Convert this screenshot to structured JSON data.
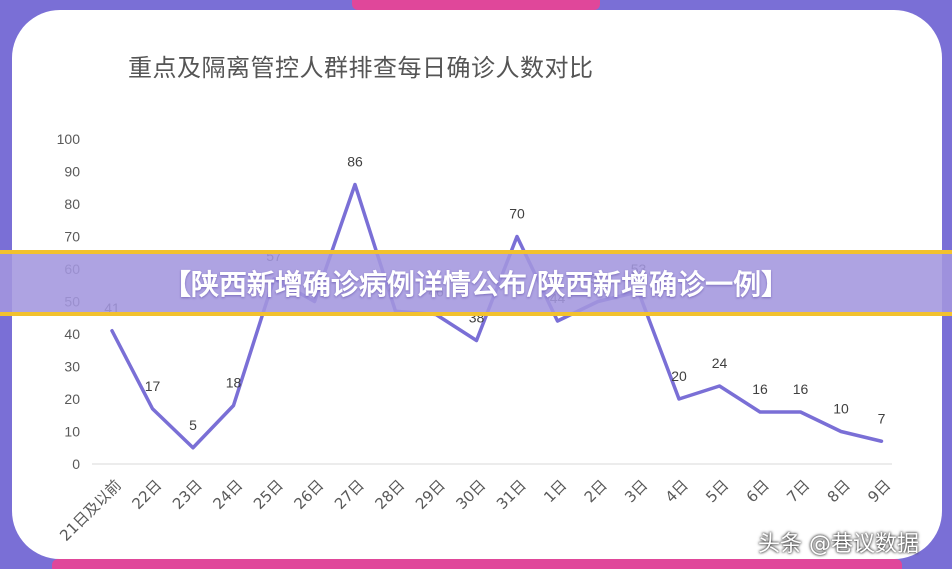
{
  "banner_text": "【陕西新增确诊病例详情公布/陕西新增确诊一例】",
  "watermark_text": "头条 @巷议数据",
  "colors": {
    "background": "#7a6fd6",
    "line": "#7a6fd6",
    "accent": "#e0479a",
    "banner_border": "#f2c12e"
  },
  "chart_data": {
    "type": "line",
    "title": "重点及隔离管控人群排查每日确诊人数对比",
    "categories": [
      "21日及以前",
      "22日",
      "23日",
      "24日",
      "25日",
      "26日",
      "27日",
      "28日",
      "29日",
      "30日",
      "31日",
      "1日",
      "2日",
      "3日",
      "4日",
      "5日",
      "6日",
      "7日",
      "8日",
      "9日"
    ],
    "values": [
      41,
      17,
      5,
      18,
      57,
      50,
      86,
      47,
      46,
      38,
      70,
      44,
      50,
      53,
      20,
      24,
      16,
      16,
      10,
      7
    ],
    "yticks": [
      0,
      10,
      20,
      30,
      40,
      50,
      60,
      70,
      80,
      90,
      100
    ],
    "ylim": [
      0,
      100
    ],
    "grid": false,
    "legend": "none"
  }
}
